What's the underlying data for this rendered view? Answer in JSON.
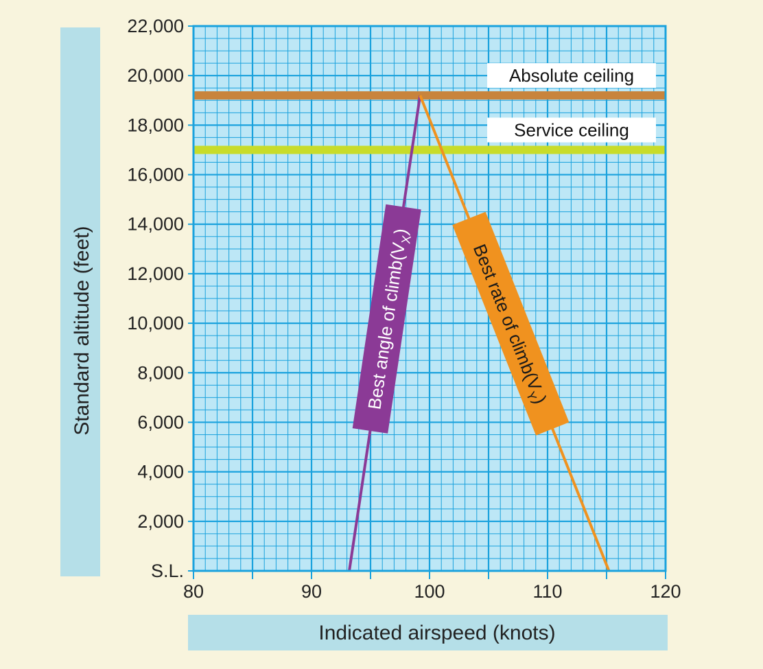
{
  "chart_data": {
    "type": "line",
    "xlabel": "Indicated airspeed (knots)",
    "ylabel": "Standard altitude (feet)",
    "xlim": [
      80,
      120
    ],
    "ylim": [
      0,
      22000
    ],
    "x_ticks": [
      80,
      90,
      100,
      110,
      120
    ],
    "x_tick_labels": [
      "80",
      "90",
      "100",
      "110",
      "120"
    ],
    "y_ticks": [
      0,
      2000,
      4000,
      6000,
      8000,
      10000,
      12000,
      14000,
      16000,
      18000,
      20000,
      22000
    ],
    "y_tick_labels": [
      "S.L.",
      "2,000",
      "4,000",
      "6,000",
      "8,000",
      "10,000",
      "12,000",
      "14,000",
      "16,000",
      "18,000",
      "20,000",
      "22,000"
    ],
    "grid": true,
    "series": [
      {
        "name": "Best angle of climb(VX)",
        "label_main": "Best angle of climb(V",
        "label_sub": "X",
        "label_end": ")",
        "color": "#8b3a96",
        "label_bg": "#8b3a96",
        "points": [
          {
            "x": 93.2,
            "y": 0
          },
          {
            "x": 99.2,
            "y": 19200
          }
        ]
      },
      {
        "name": "Best rate of climb(VY)",
        "label_main": "Best rate of climb(V",
        "label_sub": "Y",
        "label_end": ")",
        "color": "#f0921f",
        "label_bg": "#f0921f",
        "points": [
          {
            "x": 99.2,
            "y": 19200
          },
          {
            "x": 115.2,
            "y": 0
          }
        ]
      }
    ],
    "reference_lines": [
      {
        "name": "Absolute ceiling",
        "y": 19200,
        "color": "#c8843c"
      },
      {
        "name": "Service ceiling",
        "y": 17000,
        "color": "#c8dc2a"
      }
    ],
    "colors": {
      "background": "#f8f4dd",
      "plot_background": "#bde7f6",
      "grid": "#1aa2dd",
      "label_band": "#b5dfe8"
    }
  }
}
